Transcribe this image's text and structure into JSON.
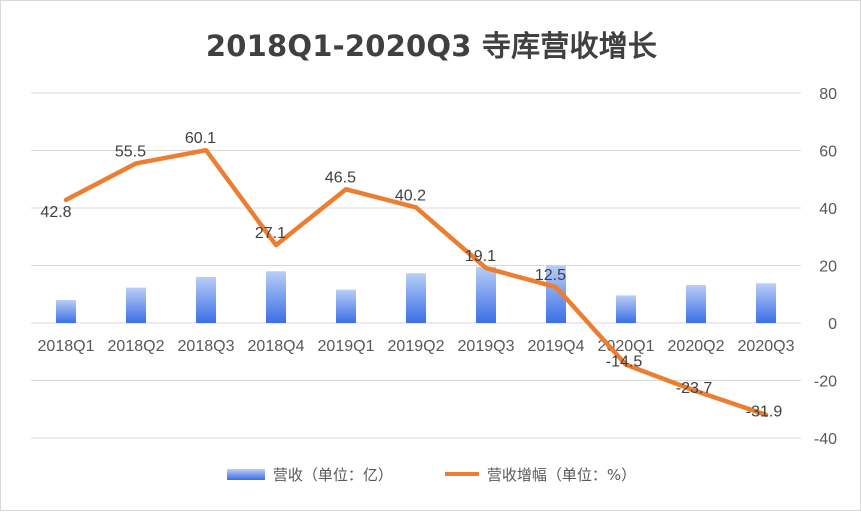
{
  "chart_data": {
    "type": "bar",
    "title": "2018Q1-2020Q3 寺库营收增长",
    "categories": [
      "2018Q1",
      "2018Q2",
      "2018Q3",
      "2018Q4",
      "2019Q1",
      "2019Q2",
      "2019Q3",
      "2019Q4",
      "2020Q1",
      "2020Q2",
      "2020Q3"
    ],
    "series": [
      {
        "name": "营收（单位：亿）",
        "kind": "bar",
        "values": [
          8.0,
          12.3,
          16.0,
          18.0,
          11.6,
          17.3,
          19.5,
          20.0,
          9.6,
          13.2,
          13.8
        ],
        "color": "#4a7ff0"
      },
      {
        "name": "营收增幅（单位：%）",
        "kind": "line",
        "values": [
          42.8,
          55.5,
          60.1,
          27.1,
          46.5,
          40.2,
          19.1,
          12.5,
          -14.5,
          -23.7,
          -31.9
        ],
        "color": "#ed7d31"
      }
    ],
    "y_ticks": [
      80,
      60,
      40,
      20,
      0,
      -20,
      -40
    ],
    "ylim": [
      -40,
      80
    ],
    "y_axis_side": "right",
    "grid": true,
    "legend_position": "bottom"
  }
}
